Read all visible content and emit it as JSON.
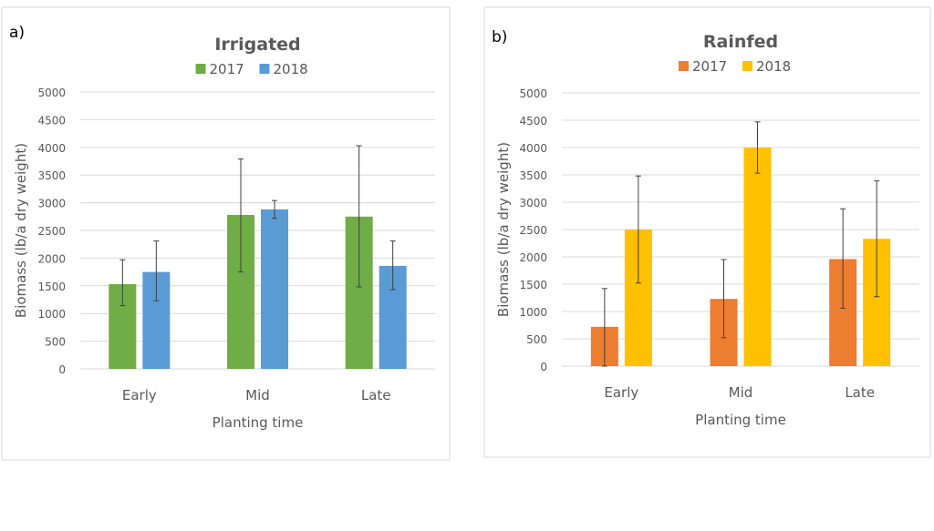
{
  "chart_data": [
    {
      "type": "bar",
      "panel_label": "a)",
      "title": "Irrigated",
      "xlabel": "Planting time",
      "ylabel": "Biomass (lb/a dry weight)",
      "categories": [
        "Early",
        "Mid",
        "Late"
      ],
      "ylim": [
        0,
        5000
      ],
      "yticks": [
        0,
        500,
        1000,
        1500,
        2000,
        2500,
        3000,
        3500,
        4000,
        4500,
        5000
      ],
      "grid": true,
      "legend": "top",
      "series": [
        {
          "name": "2017",
          "color": "#70ad47",
          "values": [
            1530,
            2780,
            2750
          ],
          "err_low": [
            1140,
            1750,
            1480
          ],
          "err_high": [
            1970,
            3790,
            4030
          ]
        },
        {
          "name": "2018",
          "color": "#5b9bd5",
          "values": [
            1750,
            2880,
            1860
          ],
          "err_low": [
            1230,
            2720,
            1430
          ],
          "err_high": [
            2310,
            3040,
            2310
          ]
        }
      ]
    },
    {
      "type": "bar",
      "panel_label": "b)",
      "title": "Rainfed",
      "xlabel": "Planting time",
      "ylabel": "Biomass (lb/a dry weight)",
      "categories": [
        "Early",
        "Mid",
        "Late"
      ],
      "ylim": [
        0,
        5000
      ],
      "yticks": [
        0,
        500,
        1000,
        1500,
        2000,
        2500,
        3000,
        3500,
        4000,
        4500,
        5000
      ],
      "grid": true,
      "legend": "top",
      "series": [
        {
          "name": "2017",
          "color": "#ed7d31",
          "values": [
            720,
            1230,
            1960
          ],
          "err_low": [
            0,
            520,
            1060
          ],
          "err_high": [
            1420,
            1950,
            2880
          ]
        },
        {
          "name": "2018",
          "color": "#ffc000",
          "values": [
            2500,
            4000,
            2330
          ],
          "err_low": [
            1520,
            3530,
            1270
          ],
          "err_high": [
            3480,
            4470,
            3390
          ]
        }
      ]
    }
  ]
}
